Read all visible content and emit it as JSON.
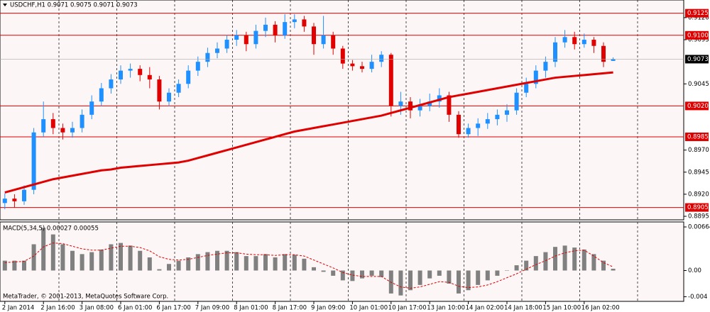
{
  "chart_data": [
    {
      "type": "candlestick",
      "title": "USDCHF,H1  0.9071 0.9075 0.9071 0.9073",
      "categories": [
        "2 Jan 2014",
        null,
        null,
        null,
        "2 Jan 16:00",
        null,
        null,
        null,
        "3 Jan 08:00",
        null,
        null,
        null,
        "6 Jan 01:00",
        null,
        null,
        null,
        "6 Jan 17:00",
        null,
        null,
        null,
        "7 Jan 09:00",
        null,
        null,
        null,
        "8 Jan 01:00",
        null,
        null,
        null,
        "8 Jan 17:00",
        null,
        null,
        null,
        "9 Jan 09:00",
        null,
        null,
        null,
        "10 Jan 01:00",
        null,
        null,
        null,
        "10 Jan 17:00",
        null,
        null,
        null,
        "13 Jan 10:00",
        null,
        null,
        null,
        "14 Jan 02:00",
        null,
        null,
        null,
        "14 Jan 18:00",
        null,
        null,
        null,
        "15 Jan 10:00",
        null,
        null,
        null,
        "16 Jan 02:00",
        null,
        null,
        null
      ],
      "ohlc": [
        [
          0.891,
          0.8921,
          0.8903,
          0.8915
        ],
        [
          0.8915,
          0.892,
          0.8905,
          0.8912
        ],
        [
          0.8912,
          0.893,
          0.8908,
          0.8925
        ],
        [
          0.8925,
          0.8995,
          0.892,
          0.899
        ],
        [
          0.899,
          0.9025,
          0.8985,
          0.9005
        ],
        [
          0.9005,
          0.9012,
          0.8988,
          0.8995
        ],
        [
          0.8995,
          0.9,
          0.8982,
          0.899
        ],
        [
          0.899,
          0.9002,
          0.8984,
          0.8995
        ],
        [
          0.8995,
          0.9016,
          0.899,
          0.901
        ],
        [
          0.901,
          0.9032,
          0.9005,
          0.9025
        ],
        [
          0.9025,
          0.9046,
          0.902,
          0.904
        ],
        [
          0.904,
          0.9056,
          0.9034,
          0.905
        ],
        [
          0.905,
          0.9066,
          0.9045,
          0.906
        ],
        [
          0.906,
          0.9068,
          0.9052,
          0.9062
        ],
        [
          0.9062,
          0.9066,
          0.9048,
          0.9055
        ],
        [
          0.9055,
          0.9064,
          0.904,
          0.905
        ],
        [
          0.905,
          0.9054,
          0.9016,
          0.9025
        ],
        [
          0.9025,
          0.904,
          0.902,
          0.9035
        ],
        [
          0.9035,
          0.905,
          0.903,
          0.9045
        ],
        [
          0.9045,
          0.9066,
          0.904,
          0.906
        ],
        [
          0.906,
          0.9076,
          0.9054,
          0.907
        ],
        [
          0.907,
          0.9086,
          0.9064,
          0.908
        ],
        [
          0.908,
          0.9092,
          0.9074,
          0.9085
        ],
        [
          0.9085,
          0.91,
          0.908,
          0.9095
        ],
        [
          0.9095,
          0.9106,
          0.9088,
          0.91
        ],
        [
          0.91,
          0.9104,
          0.9082,
          0.909
        ],
        [
          0.909,
          0.9112,
          0.9085,
          0.9105
        ],
        [
          0.9105,
          0.912,
          0.9098,
          0.9112
        ],
        [
          0.9112,
          0.9116,
          0.9092,
          0.91
        ],
        [
          0.91,
          0.9124,
          0.9096,
          0.9115
        ],
        [
          0.9115,
          0.9124,
          0.9108,
          0.9118
        ],
        [
          0.9118,
          0.9122,
          0.9104,
          0.911
        ],
        [
          0.911,
          0.9114,
          0.9078,
          0.909
        ],
        [
          0.909,
          0.9122,
          0.9085,
          0.91
        ],
        [
          0.91,
          0.9104,
          0.9078,
          0.9085
        ],
        [
          0.9085,
          0.9088,
          0.9062,
          0.9068
        ],
        [
          0.9068,
          0.9072,
          0.906,
          0.9065
        ],
        [
          0.9065,
          0.907,
          0.9058,
          0.9062
        ],
        [
          0.9062,
          0.9078,
          0.9058,
          0.907
        ],
        [
          0.907,
          0.9082,
          0.9064,
          0.9078
        ],
        [
          0.9078,
          0.908,
          0.9008,
          0.902
        ],
        [
          0.902,
          0.9036,
          0.901,
          0.9025
        ],
        [
          0.9025,
          0.903,
          0.9006,
          0.9015
        ],
        [
          0.9015,
          0.9028,
          0.9008,
          0.902
        ],
        [
          0.902,
          0.9034,
          0.9014,
          0.9025
        ],
        [
          0.9025,
          0.904,
          0.9018,
          0.9032
        ],
        [
          0.9032,
          0.9036,
          0.9002,
          0.901
        ],
        [
          0.901,
          0.9014,
          0.8984,
          0.8988
        ],
        [
          0.8988,
          0.9,
          0.8984,
          0.8995
        ],
        [
          0.8995,
          0.9006,
          0.8986,
          0.9
        ],
        [
          0.9,
          0.9012,
          0.8994,
          0.9005
        ],
        [
          0.9005,
          0.9016,
          0.8998,
          0.901
        ],
        [
          0.901,
          0.9022,
          0.9002,
          0.9015
        ],
        [
          0.9015,
          0.904,
          0.901,
          0.9035
        ],
        [
          0.9035,
          0.9052,
          0.903,
          0.9045
        ],
        [
          0.9045,
          0.9066,
          0.904,
          0.906
        ],
        [
          0.906,
          0.9076,
          0.9052,
          0.907
        ],
        [
          0.907,
          0.9098,
          0.9064,
          0.9092
        ],
        [
          0.9092,
          0.9106,
          0.9086,
          0.9098
        ],
        [
          0.9098,
          0.9104,
          0.9084,
          0.909
        ],
        [
          0.909,
          0.9102,
          0.9086,
          0.9095
        ],
        [
          0.9095,
          0.9098,
          0.908,
          0.9088
        ],
        [
          0.9088,
          0.9092,
          0.9064,
          0.907
        ],
        [
          0.9071,
          0.9075,
          0.9071,
          0.9073
        ]
      ],
      "up_color": "#1e90ff",
      "down_color": "#e00000",
      "moving_average": {
        "color": "#e00000",
        "values": [
          0.8922,
          0.8925,
          0.8928,
          0.8931,
          0.8934,
          0.8937,
          0.8939,
          0.8941,
          0.8943,
          0.8945,
          0.8947,
          0.8948,
          0.895,
          0.8951,
          0.8952,
          0.8953,
          0.8954,
          0.8955,
          0.8956,
          0.8958,
          0.8961,
          0.8964,
          0.8967,
          0.897,
          0.8973,
          0.8976,
          0.8979,
          0.8982,
          0.8985,
          0.8988,
          0.8991,
          0.8993,
          0.8995,
          0.8997,
          0.8999,
          0.9001,
          0.9003,
          0.9005,
          0.9007,
          0.9009,
          0.9012,
          0.9015,
          0.9018,
          0.9021,
          0.9024,
          0.9027,
          0.903,
          0.9032,
          0.9034,
          0.9036,
          0.9038,
          0.904,
          0.9042,
          0.9044,
          0.9046,
          0.9048,
          0.905,
          0.9052,
          0.9053,
          0.9054,
          0.9055,
          0.9056,
          0.9057,
          0.9058
        ]
      },
      "levels": [
        {
          "value": 0.9125,
          "label": "0.9125"
        },
        {
          "value": 0.91,
          "label": "0.9100"
        },
        {
          "value": 0.902,
          "label": "0.9020"
        },
        {
          "value": 0.8985,
          "label": "0.8985"
        },
        {
          "value": 0.8905,
          "label": "0.8905"
        }
      ],
      "level_color": "#e00000",
      "last_price": {
        "value": 0.9073,
        "label": "0.9073"
      },
      "ylim": [
        0.8891,
        0.914
      ],
      "yticks": [
        {
          "value": 0.912,
          "label": "0.9120"
        },
        {
          "value": 0.9095,
          "label": "0.9095"
        },
        {
          "value": 0.9045,
          "label": "0.9045"
        },
        {
          "value": 0.897,
          "label": "0.8970"
        },
        {
          "value": 0.8945,
          "label": "0.8945"
        },
        {
          "value": 0.892,
          "label": "0.8920"
        },
        {
          "value": 0.8895,
          "label": "0.8895"
        }
      ]
    },
    {
      "type": "macd",
      "title": "MACD(5,34,5) 0.00027 0.00055",
      "color": "#808080",
      "values": [
        0.0015,
        0.0015,
        0.0015,
        0.004,
        0.0065,
        0.0055,
        0.004,
        0.003,
        0.0025,
        0.0028,
        0.0032,
        0.004,
        0.0042,
        0.0038,
        0.003,
        0.002,
        0.0002,
        0.001,
        0.0015,
        0.002,
        0.0025,
        0.0028,
        0.003,
        0.003,
        0.0028,
        0.0022,
        0.0022,
        0.0025,
        0.002,
        0.0025,
        0.0024,
        0.0018,
        0.0005,
        -0.0002,
        -0.0008,
        -0.0015,
        -0.0016,
        -0.0012,
        -0.0008,
        -0.001,
        -0.0035,
        -0.0038,
        -0.003,
        -0.0022,
        -0.0012,
        -0.0008,
        -0.002,
        -0.0035,
        -0.003,
        -0.0022,
        -0.0015,
        -0.0008,
        0.0,
        0.0008,
        0.0015,
        0.0022,
        0.0028,
        0.0036,
        0.0038,
        0.0035,
        0.0032,
        0.0025,
        0.0015,
        0.00027
      ],
      "signal": {
        "color": "#e00000",
        "values": [
          0.0012,
          0.0013,
          0.0014,
          0.0022,
          0.0036,
          0.0042,
          0.0041,
          0.0037,
          0.0033,
          0.0031,
          0.0031,
          0.0034,
          0.0037,
          0.0037,
          0.0035,
          0.003,
          0.0021,
          0.0017,
          0.0016,
          0.0017,
          0.002,
          0.0023,
          0.0025,
          0.0027,
          0.0027,
          0.0025,
          0.0024,
          0.0024,
          0.0023,
          0.0024,
          0.0024,
          0.0022,
          0.0016,
          0.001,
          0.0004,
          -0.0003,
          -0.0007,
          -0.0009,
          -0.0009,
          -0.0009,
          -0.0018,
          -0.0025,
          -0.0027,
          -0.0025,
          -0.0021,
          -0.0017,
          -0.0018,
          -0.0024,
          -0.0026,
          -0.0025,
          -0.0022,
          -0.0017,
          -0.0011,
          -0.0005,
          0.0002,
          0.0009,
          0.0015,
          0.0022,
          0.0027,
          0.003,
          0.0031,
          0.0022,
          0.0012,
          0.00055
        ]
      },
      "ylim": [
        -0.0047,
        0.0074
      ],
      "yticks": [
        0.00664,
        {
          "value": 0,
          "label": "0.00"
        },
        -0.004
      ],
      "annotation": "MetaTrader, © 2001-2013, MetaQuotes Software Corp."
    }
  ]
}
